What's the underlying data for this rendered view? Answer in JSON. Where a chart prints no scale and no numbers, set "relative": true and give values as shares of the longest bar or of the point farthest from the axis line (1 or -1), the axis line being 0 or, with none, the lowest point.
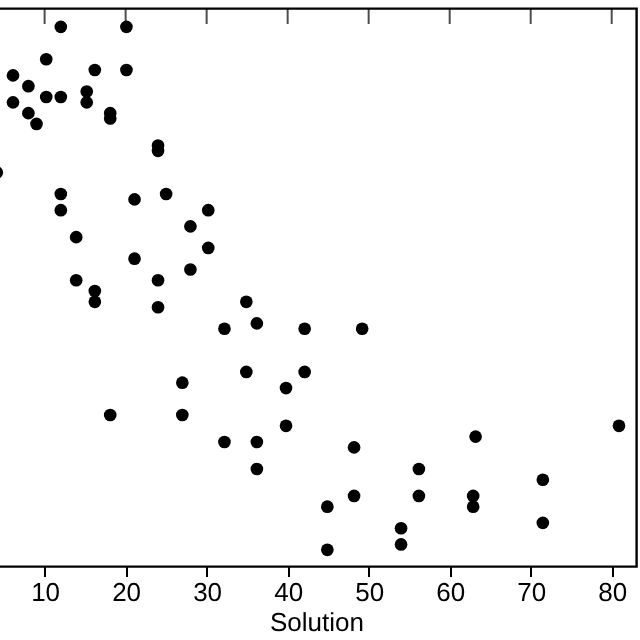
{
  "chart_data": {
    "type": "scatter",
    "xlabel": "Solution",
    "relative": true,
    "marker": "circle",
    "grid": false,
    "xlim": [
      4,
      83
    ],
    "xticks": [
      10,
      20,
      30,
      40,
      50,
      60,
      70,
      80
    ],
    "series": [
      {
        "color": "#000000",
        "x": [
          12.0,
          20.1,
          10.2,
          6.1,
          16.2,
          20.1,
          8.0,
          15.2,
          10.2,
          12.0,
          6.1,
          15.2,
          8.0,
          18.1,
          18.1,
          9.0,
          24.0,
          24.0,
          4.1,
          12.0,
          12.0,
          21.1,
          25.0,
          30.2,
          28.0,
          13.9,
          30.2,
          21.1,
          28.0,
          13.9,
          16.2,
          24.0,
          16.2,
          24.0,
          34.9,
          32.2,
          36.2,
          42.1,
          27.0,
          34.9,
          42.1,
          39.8,
          18.1,
          27.0,
          39.8,
          32.2,
          36.2,
          36.2,
          49.2,
          80.9,
          48.2,
          63.2,
          56.2,
          44.9,
          48.2,
          56.2,
          62.9,
          62.9,
          71.5,
          54.0,
          71.5,
          54.0,
          44.9
        ],
        "values": [
          1.0,
          1.0,
          0.94,
          0.91,
          0.92,
          0.92,
          0.89,
          0.88,
          0.87,
          0.87,
          0.86,
          0.86,
          0.84,
          0.84,
          0.83,
          0.82,
          0.78,
          0.77,
          0.73,
          0.69,
          0.66,
          0.68,
          0.69,
          0.66,
          0.63,
          0.61,
          0.59,
          0.57,
          0.55,
          0.53,
          0.51,
          0.53,
          0.49,
          0.48,
          0.49,
          0.44,
          0.45,
          0.44,
          0.34,
          0.36,
          0.36,
          0.33,
          0.28,
          0.28,
          0.26,
          0.23,
          0.23,
          0.18,
          0.44,
          0.26,
          0.22,
          0.24,
          0.18,
          0.11,
          0.13,
          0.13,
          0.13,
          0.11,
          0.16,
          0.07,
          0.08,
          0.04,
          0.03
        ]
      }
    ]
  }
}
